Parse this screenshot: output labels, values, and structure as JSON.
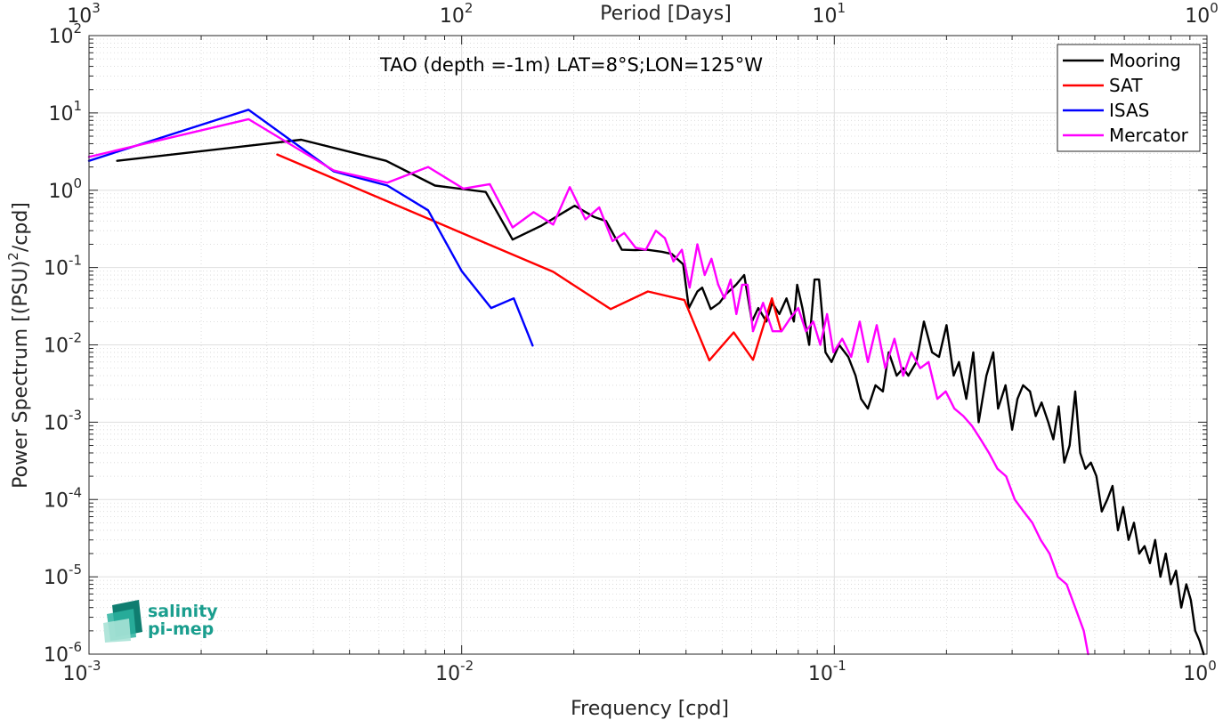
{
  "chart_data": {
    "type": "line",
    "title": "TAO (depth =-1m) LAT=8°S;LON=125°W",
    "xlabel": "Frequency [cpd]",
    "ylabel": "Power Spectrum [(PSU)",
    "ylabel_exp": "2",
    "ylabel_suffix": "/cpd]",
    "top_xlabel": "Period [Days]",
    "x_scale": "log",
    "y_scale": "log",
    "xlim": [
      0.001,
      1
    ],
    "ylim": [
      1e-06,
      100
    ],
    "grid": true,
    "legend_position": "top-right",
    "x_ticks": [
      {
        "value": 0.001,
        "base": "10",
        "exp": "-3"
      },
      {
        "value": 0.01,
        "base": "10",
        "exp": "-2"
      },
      {
        "value": 0.1,
        "base": "10",
        "exp": "-1"
      },
      {
        "value": 1,
        "base": "10",
        "exp": "0"
      }
    ],
    "y_ticks": [
      {
        "value": 1e-06,
        "base": "10",
        "exp": "-6"
      },
      {
        "value": 1e-05,
        "base": "10",
        "exp": "-5"
      },
      {
        "value": 0.0001,
        "base": "10",
        "exp": "-4"
      },
      {
        "value": 0.001,
        "base": "10",
        "exp": "-3"
      },
      {
        "value": 0.01,
        "base": "10",
        "exp": "-2"
      },
      {
        "value": 0.1,
        "base": "10",
        "exp": "-1"
      },
      {
        "value": 1,
        "base": "10",
        "exp": "0"
      },
      {
        "value": 10,
        "base": "10",
        "exp": "1"
      },
      {
        "value": 100,
        "base": "10",
        "exp": "2"
      }
    ],
    "top_ticks": [
      {
        "frequency": 0.001,
        "base": "10",
        "exp": "3"
      },
      {
        "frequency": 0.01,
        "base": "10",
        "exp": "2"
      },
      {
        "frequency": 0.1,
        "base": "10",
        "exp": "1"
      },
      {
        "frequency": 1,
        "base": "10",
        "exp": "0"
      }
    ],
    "series": [
      {
        "name": "Mooring",
        "color": "#000000",
        "x": [
          0.00119,
          0.00371,
          0.00627,
          0.00848,
          0.0116,
          0.0137,
          0.0164,
          0.0201,
          0.0227,
          0.0244,
          0.0269,
          0.0292,
          0.0314,
          0.0345,
          0.0366,
          0.0393,
          0.0407,
          0.0429,
          0.0442,
          0.0466,
          0.0492,
          0.0511,
          0.0545,
          0.0573,
          0.0601,
          0.0625,
          0.0657,
          0.0681,
          0.0712,
          0.0744,
          0.0779,
          0.0795,
          0.0821,
          0.0856,
          0.0885,
          0.091,
          0.0947,
          0.0983,
          0.103,
          0.109,
          0.114,
          0.118,
          0.123,
          0.129,
          0.135,
          0.14,
          0.147,
          0.153,
          0.158,
          0.166,
          0.174,
          0.183,
          0.191,
          0.2,
          0.209,
          0.216,
          0.226,
          0.236,
          0.244,
          0.256,
          0.267,
          0.275,
          0.288,
          0.3,
          0.31,
          0.321,
          0.335,
          0.347,
          0.36,
          0.375,
          0.387,
          0.4,
          0.414,
          0.428,
          0.443,
          0.457,
          0.472,
          0.488,
          0.505,
          0.522,
          0.54,
          0.558,
          0.577,
          0.596,
          0.616,
          0.637,
          0.658,
          0.68,
          0.703,
          0.726,
          0.75,
          0.775,
          0.8,
          0.826,
          0.853,
          0.88,
          0.905,
          0.93,
          0.955,
          0.98
        ],
        "y": [
          2.4,
          4.5,
          2.4,
          1.15,
          0.95,
          0.23,
          0.35,
          0.63,
          0.45,
          0.4,
          0.17,
          0.168,
          0.17,
          0.16,
          0.15,
          0.11,
          0.03,
          0.049,
          0.055,
          0.029,
          0.035,
          0.045,
          0.06,
          0.08,
          0.02,
          0.03,
          0.02,
          0.035,
          0.025,
          0.04,
          0.02,
          0.06,
          0.03,
          0.01,
          0.07,
          0.07,
          0.008,
          0.006,
          0.01,
          0.007,
          0.004,
          0.002,
          0.0015,
          0.003,
          0.0025,
          0.008,
          0.004,
          0.005,
          0.004,
          0.006,
          0.02,
          0.008,
          0.007,
          0.018,
          0.004,
          0.006,
          0.002,
          0.008,
          0.001,
          0.004,
          0.008,
          0.0015,
          0.003,
          0.0008,
          0.002,
          0.003,
          0.0025,
          0.0012,
          0.0018,
          0.001,
          0.0006,
          0.0016,
          0.0003,
          0.0005,
          0.0025,
          0.0004,
          0.00025,
          0.0003,
          0.0002,
          7e-05,
          0.0001,
          0.00015,
          4e-05,
          8e-05,
          3e-05,
          5e-05,
          2e-05,
          2.5e-05,
          1.5e-05,
          3e-05,
          1e-05,
          2e-05,
          8e-06,
          1.2e-05,
          4e-06,
          8e-06,
          5e-06,
          2e-06,
          1.5e-06,
          1e-06
        ]
      },
      {
        "name": "SAT",
        "color": "#ff0000",
        "x": [
          0.0032,
          0.0176,
          0.0251,
          0.0316,
          0.0396,
          0.0462,
          0.0537,
          0.0605,
          0.068,
          0.072
        ],
        "y": [
          2.9,
          0.088,
          0.029,
          0.049,
          0.038,
          0.0063,
          0.0145,
          0.0064,
          0.04,
          0.015
        ]
      },
      {
        "name": "ISAS",
        "color": "#0000ff",
        "x": [
          0.001,
          0.00268,
          0.00454,
          0.00632,
          0.00813,
          0.01,
          0.012,
          0.0138,
          0.0155
        ],
        "y": [
          2.4,
          11,
          1.75,
          1.15,
          0.55,
          0.09,
          0.03,
          0.04,
          0.0098
        ]
      },
      {
        "name": "Mercator",
        "color": "#ff00ff",
        "x": [
          0.001,
          0.00268,
          0.00454,
          0.00632,
          0.00813,
          0.0101,
          0.0119,
          0.0137,
          0.0156,
          0.0176,
          0.0195,
          0.0215,
          0.0234,
          0.0254,
          0.0273,
          0.0293,
          0.0312,
          0.0332,
          0.0351,
          0.037,
          0.039,
          0.0409,
          0.0429,
          0.0449,
          0.0468,
          0.0488,
          0.0507,
          0.0527,
          0.0546,
          0.0566,
          0.0585,
          0.0605,
          0.0644,
          0.0683,
          0.0722,
          0.0761,
          0.08,
          0.0839,
          0.0878,
          0.0917,
          0.0956,
          0.0995,
          0.105,
          0.111,
          0.117,
          0.123,
          0.13,
          0.137,
          0.145,
          0.153,
          0.161,
          0.17,
          0.179,
          0.189,
          0.199,
          0.21,
          0.222,
          0.234,
          0.247,
          0.26,
          0.274,
          0.289,
          0.305,
          0.322,
          0.34,
          0.358,
          0.378,
          0.398,
          0.42,
          0.443,
          0.467,
          0.48
        ],
        "y": [
          2.7,
          8.3,
          1.8,
          1.25,
          2.0,
          1.05,
          1.2,
          0.33,
          0.52,
          0.36,
          1.1,
          0.42,
          0.6,
          0.22,
          0.28,
          0.18,
          0.17,
          0.3,
          0.24,
          0.12,
          0.17,
          0.055,
          0.2,
          0.08,
          0.13,
          0.06,
          0.04,
          0.07,
          0.025,
          0.06,
          0.06,
          0.015,
          0.035,
          0.015,
          0.015,
          0.022,
          0.03,
          0.015,
          0.02,
          0.01,
          0.025,
          0.008,
          0.012,
          0.007,
          0.02,
          0.006,
          0.018,
          0.005,
          0.012,
          0.004,
          0.008,
          0.005,
          0.006,
          0.002,
          0.0025,
          0.0015,
          0.0012,
          0.0009,
          0.0006,
          0.0004,
          0.00025,
          0.0002,
          0.0001,
          7e-05,
          5e-05,
          3e-05,
          2e-05,
          1e-05,
          8e-06,
          4e-06,
          2e-06,
          1e-06
        ]
      }
    ]
  },
  "logo": {
    "line1": "salinity",
    "line2": "pi-mep",
    "color": "#1a9e8e"
  }
}
